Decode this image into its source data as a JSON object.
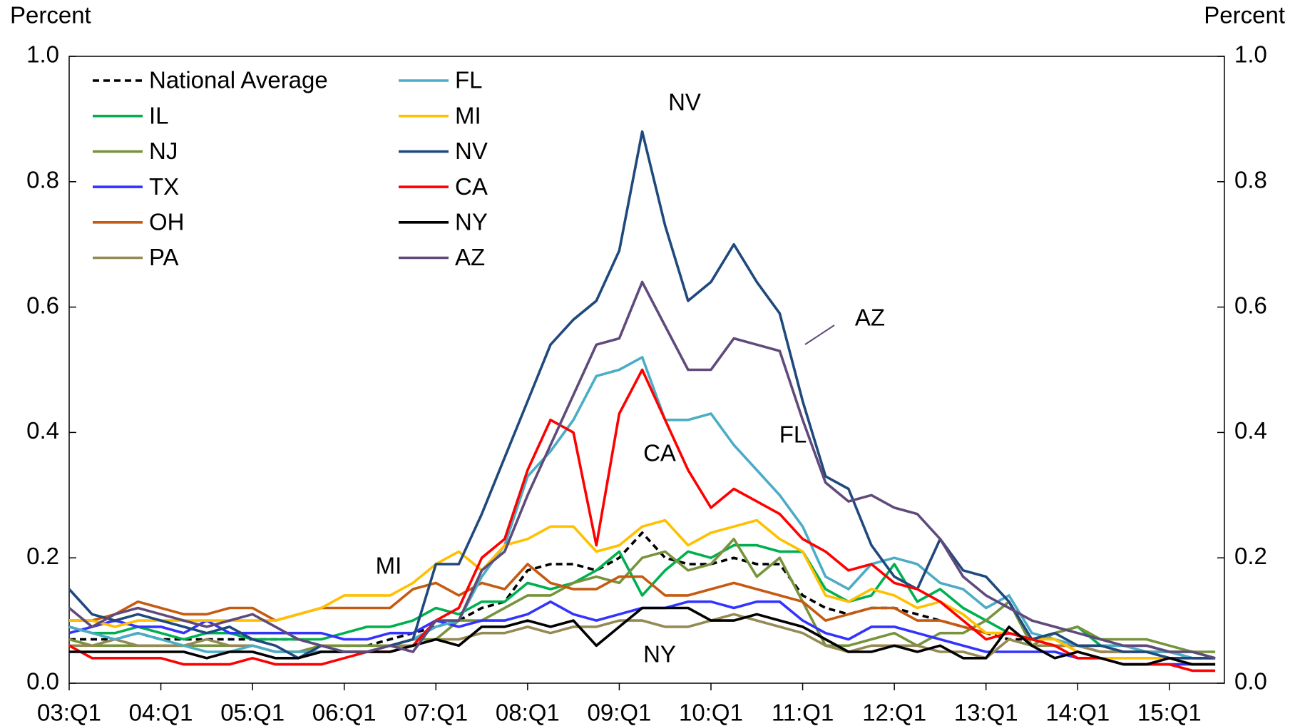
{
  "chart_data": {
    "type": "line",
    "y_label": "Percent",
    "y2_label": "Percent",
    "categories": [
      "03:Q1",
      null,
      null,
      null,
      "04:Q1",
      null,
      null,
      null,
      "05:Q1",
      null,
      null,
      null,
      "06:Q1",
      null,
      null,
      null,
      "07:Q1",
      null,
      null,
      null,
      "08:Q1",
      null,
      null,
      null,
      "09:Q1",
      null,
      null,
      null,
      "10:Q1",
      null,
      null,
      null,
      "11:Q1",
      null,
      null,
      null,
      "12:Q1",
      null,
      null,
      null,
      "13:Q1",
      null,
      null,
      null,
      "14:Q1",
      null,
      null,
      null,
      "15:Q1",
      null,
      null
    ],
    "ylim": [
      0,
      1
    ],
    "yticks": [
      {
        "value": 0,
        "label": "0.0"
      },
      0.2,
      0.4,
      0.6,
      0.8,
      {
        "value": 1,
        "label": "1.0"
      }
    ],
    "y2lim": [
      0,
      1
    ],
    "y2ticks": [
      {
        "value": 0,
        "label": "0.0"
      },
      0.2,
      0.4,
      0.6,
      0.8,
      {
        "value": 1,
        "label": "1.0"
      }
    ],
    "grid": false,
    "legend": "upper left",
    "series": [
      {
        "name": "National Average",
        "color": "#000000",
        "dashed": true,
        "values": [
          0.07,
          0.07,
          0.07,
          0.08,
          0.07,
          0.07,
          0.07,
          0.07,
          0.07,
          0.07,
          0.07,
          0.06,
          0.06,
          0.06,
          0.07,
          0.08,
          0.09,
          0.1,
          0.12,
          0.13,
          0.18,
          0.19,
          0.19,
          0.18,
          0.2,
          0.24,
          0.2,
          0.19,
          0.19,
          0.2,
          0.19,
          0.19,
          0.14,
          0.12,
          0.11,
          0.12,
          0.12,
          0.11,
          0.1,
          0.09,
          0.08,
          0.07,
          0.07,
          0.06,
          0.06,
          0.05,
          0.05,
          0.05,
          0.04,
          0.04,
          0.04
        ]
      },
      {
        "name": "IL",
        "color": "#00b050",
        "values": [
          0.09,
          0.08,
          0.08,
          0.09,
          0.08,
          0.07,
          0.08,
          0.08,
          0.07,
          0.07,
          0.07,
          0.07,
          0.08,
          0.09,
          0.09,
          0.1,
          0.12,
          0.11,
          0.13,
          0.13,
          0.16,
          0.15,
          0.16,
          0.18,
          0.21,
          0.14,
          0.18,
          0.21,
          0.2,
          0.22,
          0.22,
          0.21,
          0.21,
          0.15,
          0.13,
          0.14,
          0.19,
          0.13,
          0.15,
          0.12,
          0.1,
          0.08,
          0.07,
          0.08,
          0.09,
          0.06,
          0.06,
          0.06,
          0.05,
          0.05,
          0.04
        ]
      },
      {
        "name": "NJ",
        "color": "#77933c",
        "values": [
          0.07,
          0.06,
          0.06,
          0.06,
          0.06,
          0.06,
          0.06,
          0.06,
          0.06,
          0.05,
          0.05,
          0.06,
          0.06,
          0.06,
          0.06,
          0.07,
          0.07,
          0.1,
          0.1,
          0.12,
          0.14,
          0.14,
          0.16,
          0.17,
          0.16,
          0.2,
          0.21,
          0.18,
          0.19,
          0.23,
          0.17,
          0.2,
          0.13,
          0.06,
          0.06,
          0.07,
          0.08,
          0.06,
          0.08,
          0.08,
          0.1,
          0.13,
          0.06,
          0.08,
          0.09,
          0.07,
          0.07,
          0.07,
          0.06,
          0.05,
          0.05
        ]
      },
      {
        "name": "TX",
        "color": "#3333ff",
        "values": [
          0.08,
          0.09,
          0.1,
          0.09,
          0.09,
          0.08,
          0.1,
          0.08,
          0.08,
          0.08,
          0.08,
          0.08,
          0.07,
          0.07,
          0.08,
          0.08,
          0.1,
          0.09,
          0.1,
          0.1,
          0.11,
          0.13,
          0.11,
          0.1,
          0.11,
          0.12,
          0.12,
          0.13,
          0.13,
          0.12,
          0.13,
          0.13,
          0.1,
          0.08,
          0.07,
          0.09,
          0.09,
          0.08,
          0.07,
          0.06,
          0.05,
          0.05,
          0.05,
          0.05,
          0.04,
          0.04,
          0.03,
          0.03,
          0.03,
          0.03,
          0.03
        ]
      },
      {
        "name": "OH",
        "color": "#c55a11",
        "values": [
          0.1,
          0.1,
          0.11,
          0.13,
          0.12,
          0.11,
          0.11,
          0.12,
          0.12,
          0.1,
          0.11,
          0.12,
          0.12,
          0.12,
          0.12,
          0.15,
          0.16,
          0.14,
          0.16,
          0.15,
          0.19,
          0.16,
          0.15,
          0.15,
          0.17,
          0.17,
          0.14,
          0.14,
          0.15,
          0.16,
          0.15,
          0.14,
          0.13,
          0.1,
          0.11,
          0.12,
          0.12,
          0.1,
          0.1,
          0.09,
          0.08,
          0.08,
          0.07,
          0.06,
          0.06,
          0.05,
          0.05,
          0.05,
          0.05,
          0.04,
          0.04
        ]
      },
      {
        "name": "PA",
        "color": "#948a54",
        "values": [
          0.06,
          0.06,
          0.07,
          0.06,
          0.06,
          0.06,
          0.07,
          0.06,
          0.06,
          0.05,
          0.05,
          0.05,
          0.05,
          0.05,
          0.06,
          0.06,
          0.07,
          0.07,
          0.08,
          0.08,
          0.09,
          0.08,
          0.09,
          0.09,
          0.1,
          0.1,
          0.09,
          0.09,
          0.1,
          0.11,
          0.1,
          0.09,
          0.08,
          0.06,
          0.05,
          0.06,
          0.06,
          0.06,
          0.05,
          0.05,
          0.04,
          0.07,
          0.06,
          0.06,
          0.06,
          0.05,
          0.05,
          0.05,
          0.05,
          0.04,
          0.04
        ]
      },
      {
        "name": "FL",
        "color": "#4bacc6",
        "values": [
          0.09,
          0.08,
          0.07,
          0.08,
          0.07,
          0.06,
          0.05,
          0.05,
          0.06,
          0.05,
          0.05,
          0.05,
          0.05,
          0.05,
          0.06,
          0.07,
          0.09,
          0.1,
          0.17,
          0.22,
          0.33,
          0.37,
          0.42,
          0.49,
          0.5,
          0.52,
          0.42,
          0.42,
          0.43,
          0.38,
          0.34,
          0.3,
          0.25,
          0.17,
          0.15,
          0.19,
          0.2,
          0.19,
          0.16,
          0.15,
          0.12,
          0.14,
          0.08,
          0.07,
          0.06,
          0.06,
          0.06,
          0.05,
          0.05,
          0.04,
          0.04
        ]
      },
      {
        "name": "MI",
        "color": "#ffc000",
        "values": [
          0.1,
          0.1,
          0.09,
          0.1,
          0.1,
          0.1,
          0.1,
          0.1,
          0.1,
          0.1,
          0.11,
          0.12,
          0.14,
          0.14,
          0.14,
          0.16,
          0.19,
          0.21,
          0.18,
          0.22,
          0.23,
          0.25,
          0.25,
          0.21,
          0.22,
          0.25,
          0.26,
          0.22,
          0.24,
          0.25,
          0.26,
          0.23,
          0.21,
          0.14,
          0.13,
          0.15,
          0.14,
          0.12,
          0.13,
          0.11,
          0.08,
          0.08,
          0.07,
          0.07,
          0.05,
          0.04,
          0.04,
          0.04,
          0.04,
          0.03,
          0.03
        ]
      },
      {
        "name": "NV",
        "color": "#1f497d",
        "values": [
          0.15,
          0.11,
          0.1,
          0.11,
          0.1,
          0.09,
          0.08,
          0.09,
          0.07,
          0.06,
          0.04,
          0.06,
          0.05,
          0.05,
          0.06,
          0.07,
          0.19,
          0.19,
          0.27,
          0.36,
          0.45,
          0.54,
          0.58,
          0.61,
          0.69,
          0.88,
          0.73,
          0.61,
          0.64,
          0.7,
          0.64,
          0.59,
          0.45,
          0.33,
          0.31,
          0.22,
          0.17,
          0.15,
          0.23,
          0.18,
          0.17,
          0.13,
          0.07,
          0.08,
          0.06,
          0.06,
          0.05,
          0.05,
          0.04,
          0.04,
          0.04
        ]
      },
      {
        "name": "CA",
        "color": "#ff0000",
        "values": [
          0.06,
          0.04,
          0.04,
          0.04,
          0.04,
          0.03,
          0.03,
          0.03,
          0.04,
          0.03,
          0.03,
          0.03,
          0.04,
          0.05,
          0.05,
          0.06,
          0.1,
          0.12,
          0.2,
          0.23,
          0.34,
          0.42,
          0.4,
          0.22,
          0.43,
          0.5,
          0.42,
          0.34,
          0.28,
          0.31,
          0.29,
          0.27,
          0.23,
          0.21,
          0.18,
          0.19,
          0.16,
          0.15,
          0.13,
          0.1,
          0.07,
          0.08,
          0.07,
          0.06,
          0.04,
          0.04,
          0.03,
          0.03,
          0.03,
          0.02,
          0.02
        ]
      },
      {
        "name": "NY",
        "color": "#000000",
        "values": [
          0.05,
          0.05,
          0.05,
          0.05,
          0.05,
          0.05,
          0.04,
          0.05,
          0.05,
          0.04,
          0.04,
          0.05,
          0.05,
          0.05,
          0.05,
          0.06,
          0.07,
          0.06,
          0.09,
          0.09,
          0.1,
          0.09,
          0.1,
          0.06,
          0.09,
          0.12,
          0.12,
          0.12,
          0.1,
          0.1,
          0.11,
          0.1,
          0.09,
          0.07,
          0.05,
          0.05,
          0.06,
          0.05,
          0.06,
          0.04,
          0.04,
          0.09,
          0.06,
          0.04,
          0.05,
          0.04,
          0.03,
          0.03,
          0.04,
          0.03,
          0.03
        ]
      },
      {
        "name": "AZ",
        "color": "#604a7b",
        "values": [
          0.12,
          0.09,
          0.11,
          0.12,
          0.11,
          0.1,
          0.09,
          0.1,
          0.11,
          0.09,
          0.07,
          0.06,
          0.05,
          0.05,
          0.06,
          0.05,
          0.1,
          0.1,
          0.18,
          0.21,
          0.3,
          0.38,
          0.46,
          0.54,
          0.55,
          0.64,
          0.57,
          0.5,
          0.5,
          0.55,
          0.54,
          0.53,
          0.42,
          0.32,
          0.29,
          0.3,
          0.28,
          0.27,
          0.23,
          0.17,
          0.14,
          0.12,
          0.1,
          0.09,
          0.08,
          0.07,
          0.06,
          0.06,
          0.05,
          0.05,
          0.04
        ]
      }
    ],
    "annotations": [
      "NV",
      "AZ",
      "FL",
      "CA",
      "MI",
      "NY"
    ]
  }
}
